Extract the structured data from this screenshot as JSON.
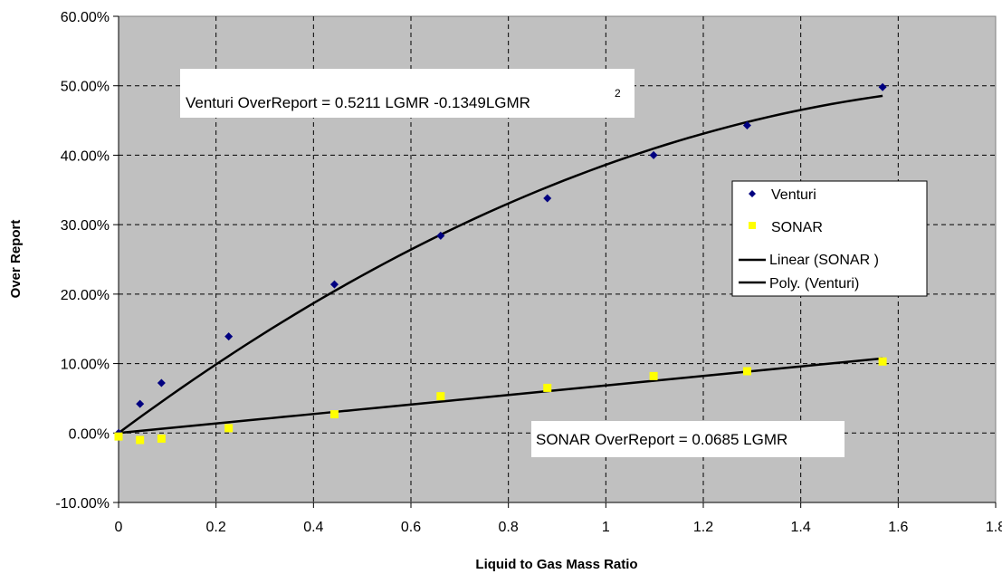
{
  "chart_data": {
    "type": "scatter",
    "title": "",
    "xlabel": "Liquid to Gas Mass Ratio",
    "ylabel": "Over Report",
    "xlim": [
      0,
      1.8
    ],
    "ylim": [
      -0.1,
      0.6
    ],
    "x_ticks": [
      0,
      0.2,
      0.4,
      0.6,
      0.8,
      1,
      1.2,
      1.4,
      1.6,
      1.8
    ],
    "x_tick_labels": [
      "0",
      "0.2",
      "0.4",
      "0.6",
      "0.8",
      "1",
      "1.2",
      "1.4",
      "1.6",
      "1.8"
    ],
    "y_ticks": [
      -0.1,
      0,
      0.1,
      0.2,
      0.3,
      0.4,
      0.5,
      0.6
    ],
    "y_tick_labels": [
      "-10.00%",
      "0.00%",
      "10.00%",
      "20.00%",
      "30.00%",
      "40.00%",
      "50.00%",
      "60.00%"
    ],
    "grid": true,
    "plot_background": "#c0c0c0",
    "series": [
      {
        "name": "Venturi",
        "marker": "diamond",
        "color": "#000080",
        "x": [
          0,
          0.044,
          0.088,
          0.226,
          0.443,
          0.661,
          0.88,
          1.098,
          1.29,
          1.568
        ],
        "y": [
          0,
          0.042,
          0.072,
          0.139,
          0.214,
          0.284,
          0.338,
          0.4,
          0.443,
          0.498
        ]
      },
      {
        "name": "SONAR",
        "marker": "square",
        "color": "#ffff00",
        "x": [
          0,
          0.044,
          0.088,
          0.226,
          0.443,
          0.661,
          0.88,
          1.098,
          1.29,
          1.568
        ],
        "y": [
          -0.005,
          -0.01,
          -0.008,
          0.007,
          0.027,
          0.053,
          0.065,
          0.082,
          0.089,
          0.103
        ]
      }
    ],
    "trendlines": [
      {
        "name": "Linear (SONAR )",
        "type": "linear",
        "coefficients": [
          0,
          0.0685
        ],
        "x_range": [
          0,
          1.568
        ],
        "color": "#000000"
      },
      {
        "name": "Poly. (Venturi)",
        "type": "poly2",
        "coefficients": [
          0,
          0.5211,
          -0.1349
        ],
        "x_range": [
          0,
          1.568
        ],
        "color": "#000000"
      }
    ],
    "annotations": [
      {
        "id": "venturi_eq",
        "main": "Venturi OverReport  =  0.5211 LGMR -0.1349LGMR",
        "superscript": "2"
      },
      {
        "id": "sonar_eq",
        "main": "SONAR OverReport  = 0.0685 LGMR"
      }
    ],
    "legend": {
      "placement": "right",
      "entries": [
        "Venturi",
        "SONAR",
        "Linear (SONAR )",
        "Poly. (Venturi)"
      ]
    }
  }
}
